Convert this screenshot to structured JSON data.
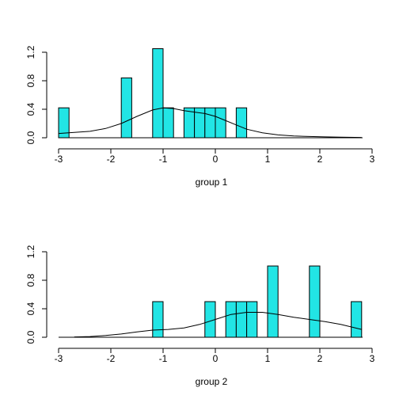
{
  "chart_data": [
    {
      "type": "bar",
      "xlabel": "group 1",
      "ylabel": "",
      "xlim": [
        -3,
        3
      ],
      "ylim": [
        0,
        1.2
      ],
      "x_ticks": [
        "-3",
        "-2",
        "-1",
        "0",
        "1",
        "2",
        "3"
      ],
      "y_ticks": [
        "0.0",
        "0.4",
        "0.8",
        "1.2"
      ],
      "bar_color": "#22E5E5",
      "bin_width": 0.2,
      "bins": [
        {
          "x0": -3.0,
          "x1": -2.8,
          "height": 0.42
        },
        {
          "x0": -1.8,
          "x1": -1.6,
          "height": 0.84
        },
        {
          "x0": -1.2,
          "x1": -1.0,
          "height": 1.25
        },
        {
          "x0": -1.0,
          "x1": -0.8,
          "height": 0.42
        },
        {
          "x0": -0.6,
          "x1": -0.4,
          "height": 0.42
        },
        {
          "x0": -0.4,
          "x1": -0.2,
          "height": 0.42
        },
        {
          "x0": -0.2,
          "x1": 0.0,
          "height": 0.42
        },
        {
          "x0": 0.0,
          "x1": 0.2,
          "height": 0.42
        },
        {
          "x0": 0.4,
          "x1": 0.6,
          "height": 0.42
        }
      ],
      "density_curve": {
        "x": [
          -3.0,
          -2.7,
          -2.4,
          -2.1,
          -1.8,
          -1.5,
          -1.2,
          -1.0,
          -0.8,
          -0.6,
          -0.4,
          -0.2,
          0.0,
          0.2,
          0.4,
          0.6,
          0.9,
          1.2,
          1.5,
          1.8,
          2.1,
          2.4,
          2.8
        ],
        "y": [
          0.06,
          0.075,
          0.09,
          0.13,
          0.2,
          0.3,
          0.39,
          0.42,
          0.41,
          0.38,
          0.36,
          0.34,
          0.3,
          0.24,
          0.18,
          0.12,
          0.07,
          0.04,
          0.025,
          0.018,
          0.012,
          0.008,
          0.005
        ]
      }
    },
    {
      "type": "bar",
      "xlabel": "group 2",
      "ylabel": "",
      "xlim": [
        -3,
        3
      ],
      "ylim": [
        0,
        1.2
      ],
      "x_ticks": [
        "-3",
        "-2",
        "-1",
        "0",
        "1",
        "2",
        "3"
      ],
      "y_ticks": [
        "0.0",
        "0.4",
        "0.8",
        "1.2"
      ],
      "bar_color": "#22E5E5",
      "bin_width": 0.2,
      "bins": [
        {
          "x0": -1.2,
          "x1": -1.0,
          "height": 0.5
        },
        {
          "x0": -0.2,
          "x1": 0.0,
          "height": 0.5
        },
        {
          "x0": 0.2,
          "x1": 0.4,
          "height": 0.5
        },
        {
          "x0": 0.4,
          "x1": 0.6,
          "height": 0.5
        },
        {
          "x0": 0.6,
          "x1": 0.8,
          "height": 0.5
        },
        {
          "x0": 1.0,
          "x1": 1.2,
          "height": 1.0
        },
        {
          "x0": 1.8,
          "x1": 2.0,
          "height": 1.0
        },
        {
          "x0": 2.6,
          "x1": 2.8,
          "height": 0.5
        }
      ],
      "density_curve": {
        "x": [
          -2.7,
          -2.4,
          -2.1,
          -1.8,
          -1.5,
          -1.2,
          -0.9,
          -0.6,
          -0.3,
          0.0,
          0.3,
          0.6,
          0.9,
          1.2,
          1.5,
          1.8,
          2.1,
          2.4,
          2.8
        ],
        "y": [
          0.005,
          0.01,
          0.025,
          0.045,
          0.075,
          0.1,
          0.11,
          0.13,
          0.18,
          0.25,
          0.32,
          0.35,
          0.35,
          0.32,
          0.28,
          0.25,
          0.22,
          0.18,
          0.11
        ]
      }
    }
  ]
}
